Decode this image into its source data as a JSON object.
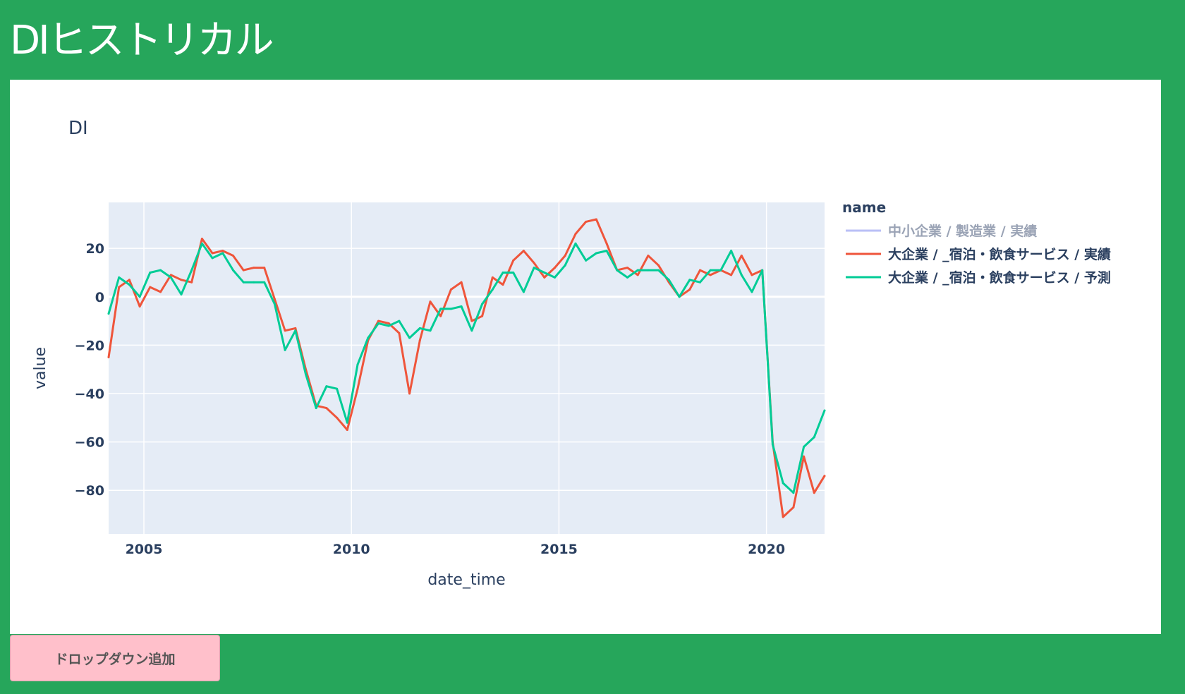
{
  "header": {
    "title": "DIヒストリカル"
  },
  "controls": {
    "add_dropdown_label": "ドロップダウン追加"
  },
  "colors": {
    "page_background": "#26a65b",
    "plot_background": "#e5ecf6",
    "button_background": "#ffc0cb",
    "series_hidden": "#aab0f5",
    "series_actual": "#ef553b",
    "series_forecast": "#00cc96"
  },
  "chart_data": {
    "type": "line",
    "title": "DI",
    "xlabel": "date_time",
    "ylabel": "value",
    "xlim": [
      2004.15,
      2021.4
    ],
    "ylim": [
      -98,
      39
    ],
    "x_ticks": [
      2005,
      2010,
      2015,
      2020
    ],
    "x_tick_labels": [
      "2005",
      "2010",
      "2015",
      "2020"
    ],
    "y_ticks": [
      20,
      0,
      -20,
      -40,
      -60,
      -80
    ],
    "y_tick_labels": [
      "20",
      "0",
      "−20",
      "−40",
      "−60",
      "−80"
    ],
    "grid": true,
    "legend": {
      "title": "name",
      "placement": "right",
      "entries": [
        {
          "label": "中小企業 / 製造業 / 実績",
          "color": "#aab0f5",
          "hidden": true
        },
        {
          "label": "大企業 / _宿泊・飲食サービス / 実績",
          "color": "#ef553b",
          "hidden": false
        },
        {
          "label": "大企業 / _宿泊・飲食サービス / 予測",
          "color": "#00cc96",
          "hidden": false
        }
      ]
    },
    "series": [
      {
        "name": "大企業 / _宿泊・飲食サービス / 実績",
        "color": "#ef553b",
        "points": [
          [
            2004.15,
            -25
          ],
          [
            2004.4,
            4
          ],
          [
            2004.65,
            7
          ],
          [
            2004.9,
            -4
          ],
          [
            2005.15,
            4
          ],
          [
            2005.4,
            2
          ],
          [
            2005.65,
            9
          ],
          [
            2005.9,
            7
          ],
          [
            2006.15,
            6
          ],
          [
            2006.4,
            24
          ],
          [
            2006.65,
            18
          ],
          [
            2006.9,
            19
          ],
          [
            2007.15,
            17
          ],
          [
            2007.4,
            11
          ],
          [
            2007.65,
            12
          ],
          [
            2007.9,
            12
          ],
          [
            2008.15,
            -1
          ],
          [
            2008.4,
            -14
          ],
          [
            2008.65,
            -13
          ],
          [
            2008.9,
            -30
          ],
          [
            2009.15,
            -45
          ],
          [
            2009.4,
            -46
          ],
          [
            2009.65,
            -50
          ],
          [
            2009.9,
            -55
          ],
          [
            2010.15,
            -38
          ],
          [
            2010.4,
            -18
          ],
          [
            2010.65,
            -10
          ],
          [
            2010.9,
            -11
          ],
          [
            2011.15,
            -15
          ],
          [
            2011.4,
            -40
          ],
          [
            2011.65,
            -18
          ],
          [
            2011.9,
            -2
          ],
          [
            2012.15,
            -8
          ],
          [
            2012.4,
            3
          ],
          [
            2012.65,
            6
          ],
          [
            2012.9,
            -10
          ],
          [
            2013.15,
            -8
          ],
          [
            2013.4,
            8
          ],
          [
            2013.65,
            5
          ],
          [
            2013.9,
            15
          ],
          [
            2014.15,
            19
          ],
          [
            2014.4,
            14
          ],
          [
            2014.65,
            8
          ],
          [
            2014.9,
            12
          ],
          [
            2015.15,
            17
          ],
          [
            2015.4,
            26
          ],
          [
            2015.65,
            31
          ],
          [
            2015.9,
            32
          ],
          [
            2016.15,
            22
          ],
          [
            2016.4,
            11
          ],
          [
            2016.65,
            12
          ],
          [
            2016.9,
            9
          ],
          [
            2017.15,
            17
          ],
          [
            2017.4,
            13
          ],
          [
            2017.65,
            6
          ],
          [
            2017.9,
            0
          ],
          [
            2018.15,
            3
          ],
          [
            2018.4,
            11
          ],
          [
            2018.65,
            9
          ],
          [
            2018.9,
            11
          ],
          [
            2019.15,
            9
          ],
          [
            2019.4,
            17
          ],
          [
            2019.65,
            9
          ],
          [
            2019.9,
            11
          ],
          [
            2020.15,
            -60
          ],
          [
            2020.4,
            -91
          ],
          [
            2020.65,
            -87
          ],
          [
            2020.9,
            -66
          ],
          [
            2021.15,
            -81
          ],
          [
            2021.4,
            -74
          ]
        ]
      },
      {
        "name": "大企業 / _宿泊・飲食サービス / 予測",
        "color": "#00cc96",
        "points": [
          [
            2004.15,
            -7
          ],
          [
            2004.4,
            8
          ],
          [
            2004.65,
            5
          ],
          [
            2004.9,
            0
          ],
          [
            2005.15,
            10
          ],
          [
            2005.4,
            11
          ],
          [
            2005.65,
            8
          ],
          [
            2005.9,
            1
          ],
          [
            2006.15,
            11
          ],
          [
            2006.4,
            22
          ],
          [
            2006.65,
            16
          ],
          [
            2006.9,
            18
          ],
          [
            2007.15,
            11
          ],
          [
            2007.4,
            6
          ],
          [
            2007.65,
            6
          ],
          [
            2007.9,
            6
          ],
          [
            2008.15,
            -3
          ],
          [
            2008.4,
            -22
          ],
          [
            2008.65,
            -14
          ],
          [
            2008.9,
            -32
          ],
          [
            2009.15,
            -46
          ],
          [
            2009.4,
            -37
          ],
          [
            2009.65,
            -38
          ],
          [
            2009.9,
            -52
          ],
          [
            2010.15,
            -28
          ],
          [
            2010.4,
            -17
          ],
          [
            2010.65,
            -11
          ],
          [
            2010.9,
            -12
          ],
          [
            2011.15,
            -10
          ],
          [
            2011.4,
            -17
          ],
          [
            2011.65,
            -13
          ],
          [
            2011.9,
            -14
          ],
          [
            2012.15,
            -5
          ],
          [
            2012.4,
            -5
          ],
          [
            2012.65,
            -4
          ],
          [
            2012.9,
            -14
          ],
          [
            2013.15,
            -3
          ],
          [
            2013.4,
            3
          ],
          [
            2013.65,
            10
          ],
          [
            2013.9,
            10
          ],
          [
            2014.15,
            2
          ],
          [
            2014.4,
            12
          ],
          [
            2014.65,
            10
          ],
          [
            2014.9,
            8
          ],
          [
            2015.15,
            13
          ],
          [
            2015.4,
            22
          ],
          [
            2015.65,
            15
          ],
          [
            2015.9,
            18
          ],
          [
            2016.15,
            19
          ],
          [
            2016.4,
            11
          ],
          [
            2016.65,
            8
          ],
          [
            2016.9,
            11
          ],
          [
            2017.15,
            11
          ],
          [
            2017.4,
            11
          ],
          [
            2017.65,
            7
          ],
          [
            2017.9,
            0
          ],
          [
            2018.15,
            7
          ],
          [
            2018.4,
            6
          ],
          [
            2018.65,
            11
          ],
          [
            2018.9,
            11
          ],
          [
            2019.15,
            19
          ],
          [
            2019.4,
            9
          ],
          [
            2019.65,
            2
          ],
          [
            2019.9,
            11
          ],
          [
            2020.15,
            -61
          ],
          [
            2020.4,
            -77
          ],
          [
            2020.65,
            -81
          ],
          [
            2020.9,
            -62
          ],
          [
            2021.15,
            -58
          ],
          [
            2021.4,
            -47
          ]
        ]
      }
    ]
  }
}
